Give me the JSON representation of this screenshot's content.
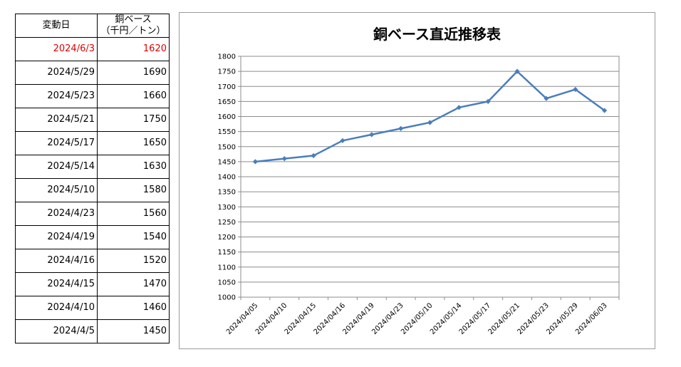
{
  "table": {
    "header_date": "変動日",
    "header_value_line1": "銅ベース",
    "header_value_line2": "（千円／トン）",
    "rows": [
      {
        "date": "2024/6/3",
        "value": "1620"
      },
      {
        "date": "2024/5/29",
        "value": "1690"
      },
      {
        "date": "2024/5/23",
        "value": "1660"
      },
      {
        "date": "2024/5/21",
        "value": "1750"
      },
      {
        "date": "2024/5/17",
        "value": "1650"
      },
      {
        "date": "2024/5/14",
        "value": "1630"
      },
      {
        "date": "2024/5/10",
        "value": "1580"
      },
      {
        "date": "2024/4/23",
        "value": "1560"
      },
      {
        "date": "2024/4/19",
        "value": "1540"
      },
      {
        "date": "2024/4/16",
        "value": "1520"
      },
      {
        "date": "2024/4/15",
        "value": "1470"
      },
      {
        "date": "2024/4/10",
        "value": "1460"
      },
      {
        "date": "2024/4/5",
        "value": "1450"
      }
    ],
    "highlight_color": "#e00000"
  },
  "chart_data": {
    "type": "line",
    "title": "銅ベース直近推移表",
    "categories": [
      "2024/04/05",
      "2024/04/10",
      "2024/04/15",
      "2024/04/16",
      "2024/04/19",
      "2024/04/23",
      "2024/05/10",
      "2024/05/14",
      "2024/05/17",
      "2024/05/21",
      "2024/05/23",
      "2024/05/29",
      "2024/06/03"
    ],
    "series": [
      {
        "values": [
          1450,
          1460,
          1470,
          1520,
          1540,
          1560,
          1580,
          1630,
          1650,
          1750,
          1660,
          1690,
          1620
        ],
        "color": "#4a7ebb"
      }
    ],
    "ylim": [
      1000,
      1800
    ],
    "ytick_step": 50,
    "grid": true,
    "xlabel": "",
    "ylabel": ""
  }
}
